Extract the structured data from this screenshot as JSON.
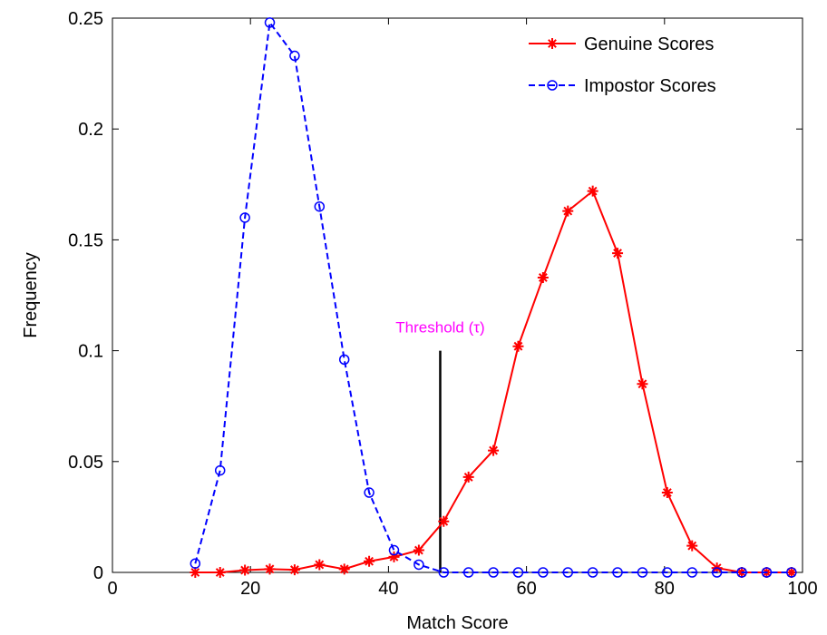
{
  "chart_data": {
    "type": "line",
    "xlabel": "Match Score",
    "ylabel": "Frequency",
    "xlim": [
      0,
      100
    ],
    "ylim": [
      0,
      0.25
    ],
    "x_ticks": [
      0,
      20,
      40,
      60,
      80,
      100
    ],
    "y_ticks": [
      0,
      0.05,
      0.1,
      0.15,
      0.2,
      0.25
    ],
    "x_tick_labels": [
      "0",
      "20",
      "40",
      "60",
      "80",
      "100"
    ],
    "y_tick_labels": [
      "0",
      "0.05",
      "0.1",
      "0.15",
      "0.2",
      "0.25"
    ],
    "grid": false,
    "legend_position": "top-right",
    "series": [
      {
        "name": "Genuine Scores",
        "color": "#ff0000",
        "line_style": "solid",
        "marker": "star",
        "x": [
          12,
          15.6,
          19.2,
          22.8,
          26.4,
          30.0,
          33.6,
          37.2,
          40.8,
          44.4,
          48.0,
          51.6,
          55.2,
          58.8,
          62.4,
          66.0,
          69.6,
          73.2,
          76.8,
          80.4,
          84.0,
          87.6,
          91.2,
          94.8,
          98.4
        ],
        "values": [
          0.0,
          0.0,
          0.001,
          0.0015,
          0.0012,
          0.0035,
          0.0015,
          0.005,
          0.007,
          0.01,
          0.023,
          0.043,
          0.055,
          0.102,
          0.133,
          0.163,
          0.172,
          0.144,
          0.085,
          0.036,
          0.012,
          0.002,
          0.0,
          0.0,
          0.0
        ]
      },
      {
        "name": "Impostor Scores",
        "color": "#0000ff",
        "line_style": "dashed",
        "marker": "circle",
        "x": [
          12,
          15.6,
          19.2,
          22.8,
          26.4,
          30.0,
          33.6,
          37.2,
          40.8,
          44.4,
          48.0,
          51.6,
          55.2,
          58.8,
          62.4,
          66.0,
          69.6,
          73.2,
          76.8,
          80.4,
          84.0,
          87.6,
          91.2,
          94.8,
          98.4
        ],
        "values": [
          0.004,
          0.046,
          0.16,
          0.248,
          0.233,
          0.165,
          0.096,
          0.036,
          0.01,
          0.0035,
          0.0,
          0.0,
          0.0,
          0.0,
          0.0,
          0.0,
          0.0,
          0.0,
          0.0,
          0.0,
          0.0,
          0.0,
          0.0,
          0.0,
          0.0
        ]
      }
    ],
    "annotations": [
      {
        "text": "Threshold (τ)",
        "color": "#ff00ff",
        "x": 47.5,
        "y_start": 0,
        "y_end": 0.1
      }
    ]
  }
}
